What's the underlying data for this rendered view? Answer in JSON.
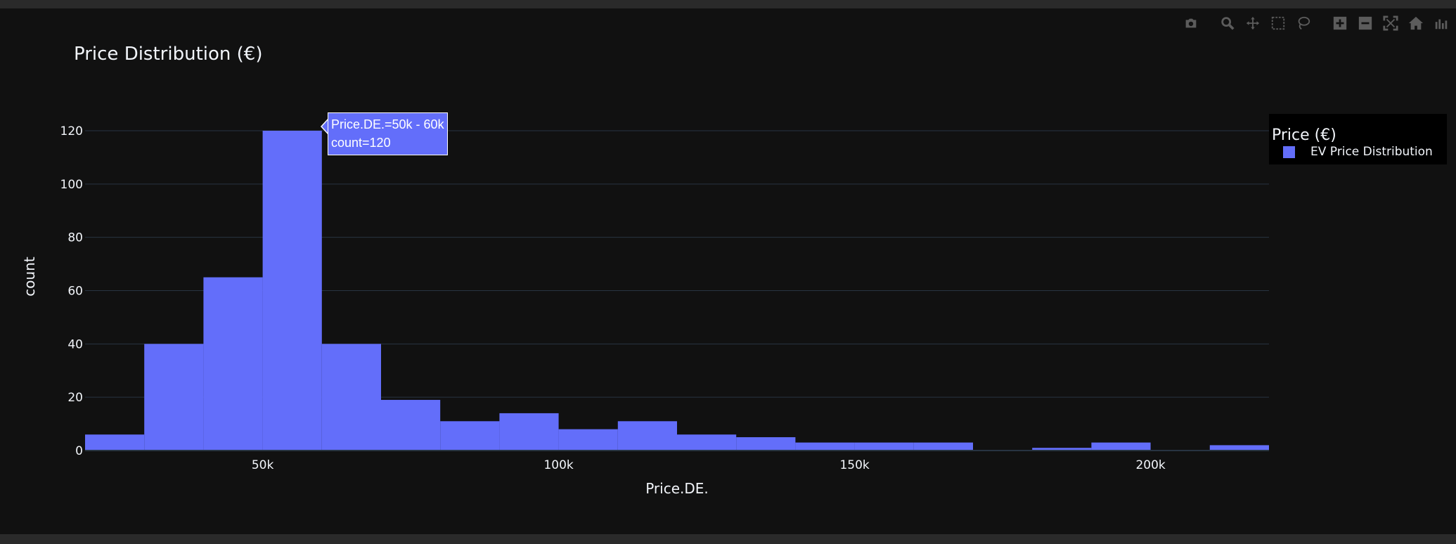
{
  "modebar": {
    "buttons": [
      {
        "name": "camera-icon"
      },
      {
        "name": "zoom-icon"
      },
      {
        "name": "pan-icon"
      },
      {
        "name": "box-select-icon"
      },
      {
        "name": "lasso-select-icon"
      },
      {
        "name": "zoom-in-icon"
      },
      {
        "name": "zoom-out-icon"
      },
      {
        "name": "autoscale-icon"
      },
      {
        "name": "reset-axes-icon"
      },
      {
        "name": "plotly-logo-icon"
      }
    ]
  },
  "legend": {
    "title": "Price (€)",
    "items": [
      {
        "label": "EV Price Distribution",
        "color": "#636efa"
      }
    ]
  },
  "tooltip": {
    "line1": "Price.DE.=50k - 60k",
    "line2": "count=120"
  },
  "chart_data": {
    "type": "histogram",
    "title": "Price Distribution (€)",
    "xlabel": "Price.DE.",
    "ylabel": "count",
    "x_ticks": [
      {
        "value": 50000,
        "label": "50k"
      },
      {
        "value": 100000,
        "label": "100k"
      },
      {
        "value": 150000,
        "label": "150k"
      },
      {
        "value": 200000,
        "label": "200k"
      }
    ],
    "y_ticks": [
      0,
      20,
      40,
      60,
      80,
      100,
      120
    ],
    "xlim": [
      20000,
      220000
    ],
    "ylim": [
      0,
      120
    ],
    "bin_size": 10000,
    "grid": true,
    "legend_position": "top-right",
    "colors": {
      "bar": "#636efa",
      "background": "#111111",
      "grid": "#283442",
      "text": "#f2f5fa"
    },
    "bins": [
      {
        "start": 20000,
        "end": 30000,
        "count": 6
      },
      {
        "start": 30000,
        "end": 40000,
        "count": 40
      },
      {
        "start": 40000,
        "end": 50000,
        "count": 65
      },
      {
        "start": 50000,
        "end": 60000,
        "count": 120
      },
      {
        "start": 60000,
        "end": 70000,
        "count": 40
      },
      {
        "start": 70000,
        "end": 80000,
        "count": 19
      },
      {
        "start": 80000,
        "end": 90000,
        "count": 11
      },
      {
        "start": 90000,
        "end": 100000,
        "count": 14
      },
      {
        "start": 100000,
        "end": 110000,
        "count": 8
      },
      {
        "start": 110000,
        "end": 120000,
        "count": 11
      },
      {
        "start": 120000,
        "end": 130000,
        "count": 6
      },
      {
        "start": 130000,
        "end": 140000,
        "count": 5
      },
      {
        "start": 140000,
        "end": 150000,
        "count": 3
      },
      {
        "start": 150000,
        "end": 160000,
        "count": 3
      },
      {
        "start": 160000,
        "end": 170000,
        "count": 3
      },
      {
        "start": 170000,
        "end": 180000,
        "count": 0
      },
      {
        "start": 180000,
        "end": 190000,
        "count": 1
      },
      {
        "start": 190000,
        "end": 200000,
        "count": 3
      },
      {
        "start": 200000,
        "end": 210000,
        "count": 0
      },
      {
        "start": 210000,
        "end": 220000,
        "count": 2
      }
    ]
  }
}
